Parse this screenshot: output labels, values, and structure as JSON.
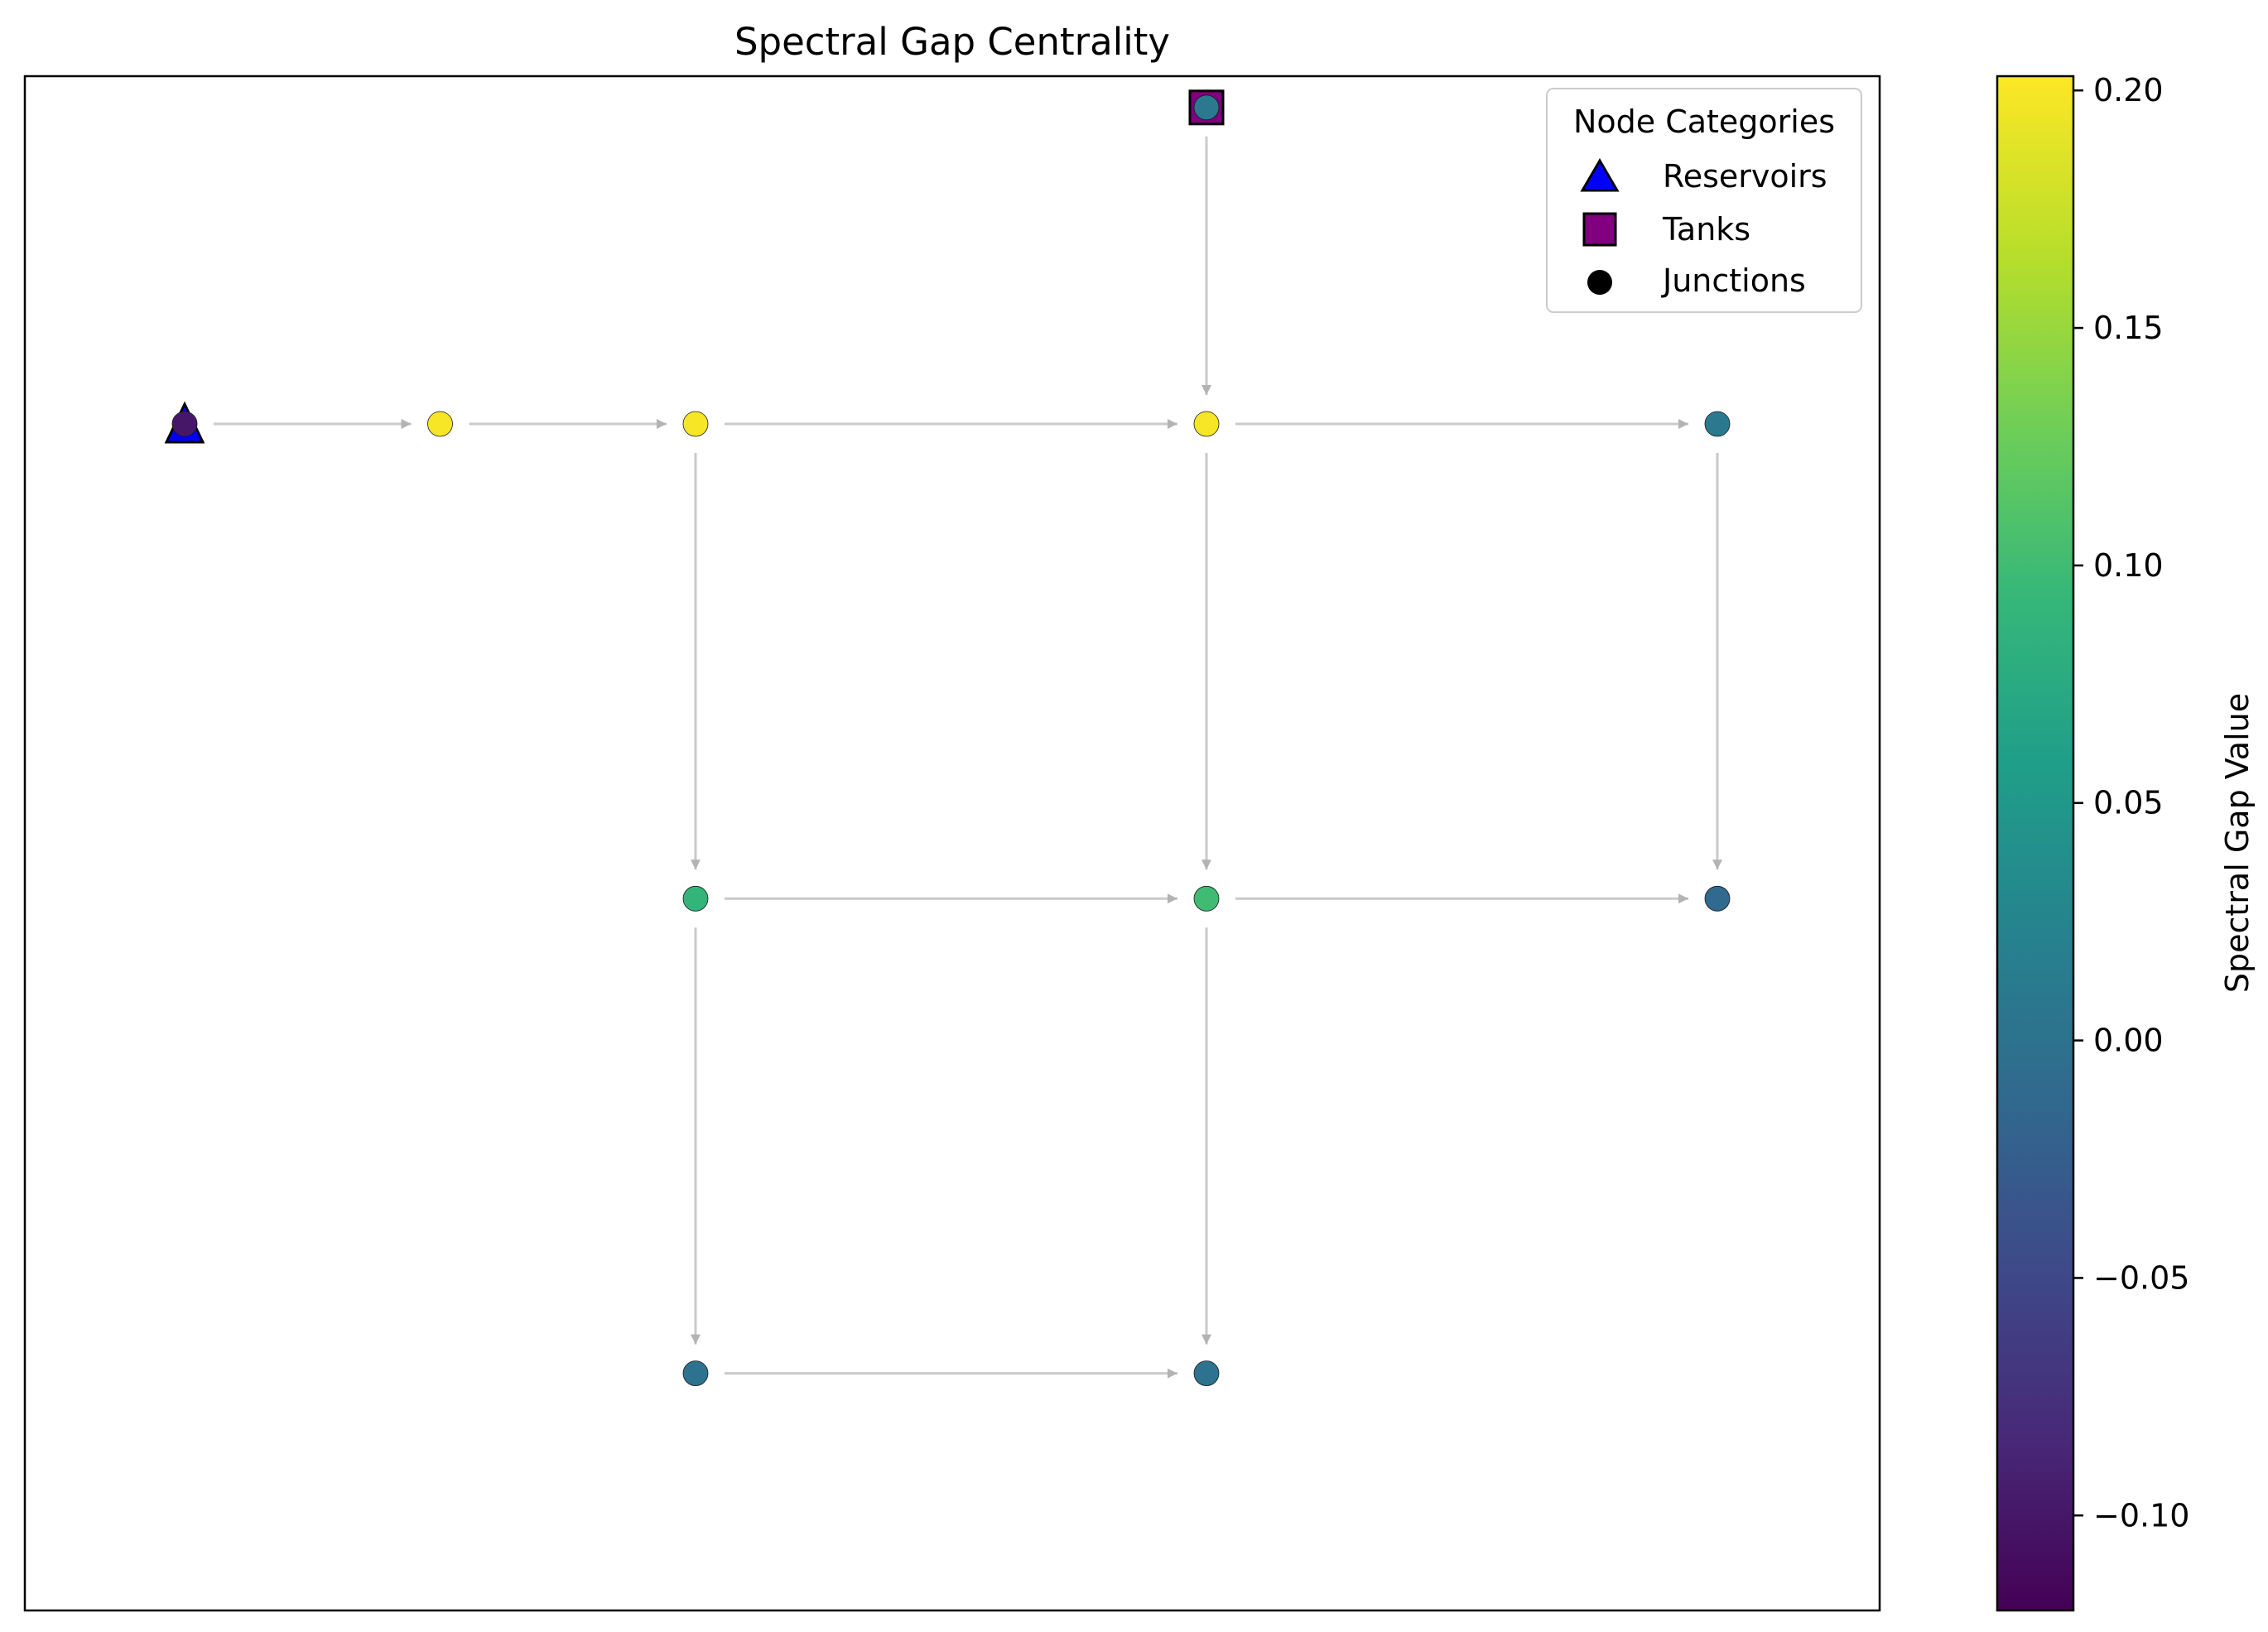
{
  "chart_data": {
    "type": "network",
    "title": "Spectral Gap Centrality",
    "legend": {
      "title": "Node Categories",
      "placement": "top-right",
      "items": [
        {
          "label": "Reservoirs",
          "marker": "triangle",
          "color": "#0000ff"
        },
        {
          "label": "Tanks",
          "marker": "square",
          "color": "#800080"
        },
        {
          "label": "Junctions",
          "marker": "circle",
          "color": "#000000"
        }
      ]
    },
    "colorbar": {
      "label": "Spectral Gap Value",
      "colormap": "viridis",
      "range": [
        -0.12,
        0.203
      ],
      "ticks": [
        -0.1,
        -0.05,
        0.0,
        0.05,
        0.1,
        0.15,
        0.2
      ],
      "tick_labels": [
        "−0.10",
        "−0.05",
        "0.00",
        "0.05",
        "0.10",
        "0.15",
        "0.20"
      ]
    },
    "grid": false,
    "axes_visible": false,
    "nodes": [
      {
        "id": "R1",
        "type": "reservoir",
        "x": 0,
        "y": 4,
        "value": -0.1
      },
      {
        "id": "J1",
        "type": "junction",
        "x": 1,
        "y": 4,
        "value": 0.2
      },
      {
        "id": "J2",
        "type": "junction",
        "x": 2,
        "y": 4,
        "value": 0.2
      },
      {
        "id": "J3",
        "type": "junction",
        "x": 4,
        "y": 4,
        "value": 0.2
      },
      {
        "id": "J4",
        "type": "junction",
        "x": 6,
        "y": 4,
        "value": 0.01
      },
      {
        "id": "T1",
        "type": "tank",
        "x": 4,
        "y": 5.2,
        "value": 0.01
      },
      {
        "id": "J5",
        "type": "junction",
        "x": 2,
        "y": 2.2,
        "value": 0.09
      },
      {
        "id": "J6",
        "type": "junction",
        "x": 4,
        "y": 2.2,
        "value": 0.1
      },
      {
        "id": "J7",
        "type": "junction",
        "x": 6,
        "y": 2.2,
        "value": -0.01
      },
      {
        "id": "J8",
        "type": "junction",
        "x": 2,
        "y": 0.4,
        "value": 0.0
      },
      {
        "id": "J9",
        "type": "junction",
        "x": 4,
        "y": 0.4,
        "value": 0.0
      }
    ],
    "edges": [
      [
        "R1",
        "J1"
      ],
      [
        "J1",
        "J2"
      ],
      [
        "J2",
        "J3"
      ],
      [
        "J3",
        "J4"
      ],
      [
        "T1",
        "J3"
      ],
      [
        "J2",
        "J5"
      ],
      [
        "J3",
        "J6"
      ],
      [
        "J4",
        "J7"
      ],
      [
        "J5",
        "J6"
      ],
      [
        "J6",
        "J7"
      ],
      [
        "J5",
        "J8"
      ],
      [
        "J6",
        "J9"
      ],
      [
        "J8",
        "J9"
      ]
    ]
  }
}
